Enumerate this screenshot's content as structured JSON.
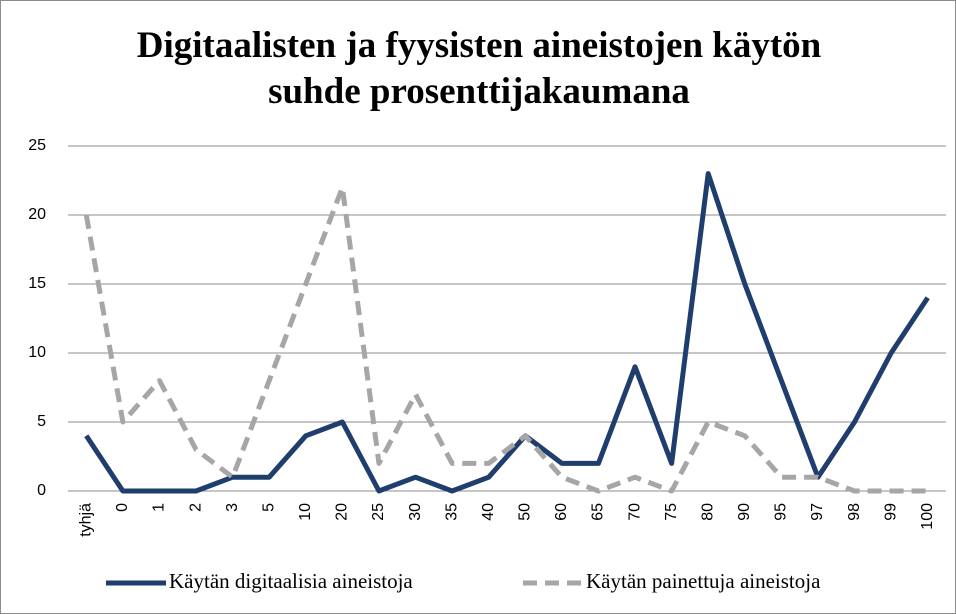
{
  "chart_data": {
    "type": "line",
    "title": "Digitaalisten ja fyysisten aineistojen käytön suhde prosenttijakaumana",
    "categories": [
      "tyhjä",
      "0",
      "1",
      "2",
      "3",
      "5",
      "10",
      "20",
      "25",
      "30",
      "35",
      "40",
      "50",
      "60",
      "65",
      "70",
      "75",
      "80",
      "90",
      "95",
      "97",
      "98",
      "99",
      "100"
    ],
    "series": [
      {
        "name": "Käytän digitaalisia aineistoja",
        "color": "#1f3e6e",
        "dash": false,
        "values": [
          4,
          0,
          0,
          0,
          1,
          1,
          4,
          5,
          0,
          1,
          0,
          1,
          4,
          2,
          2,
          9,
          2,
          23,
          15,
          8,
          1,
          5,
          10,
          14
        ]
      },
      {
        "name": "Käytän painettuja aineistoja",
        "color": "#a6a6a6",
        "dash": true,
        "values": [
          20,
          5,
          8,
          3,
          1,
          8,
          15,
          22,
          2,
          7,
          2,
          2,
          4,
          1,
          0,
          1,
          0,
          5,
          4,
          1,
          1,
          0,
          0,
          0
        ]
      }
    ],
    "ylim": [
      0,
      25
    ],
    "yticks": [
      0,
      5,
      10,
      15,
      20,
      25
    ],
    "grid": true,
    "legend": "bottom"
  }
}
